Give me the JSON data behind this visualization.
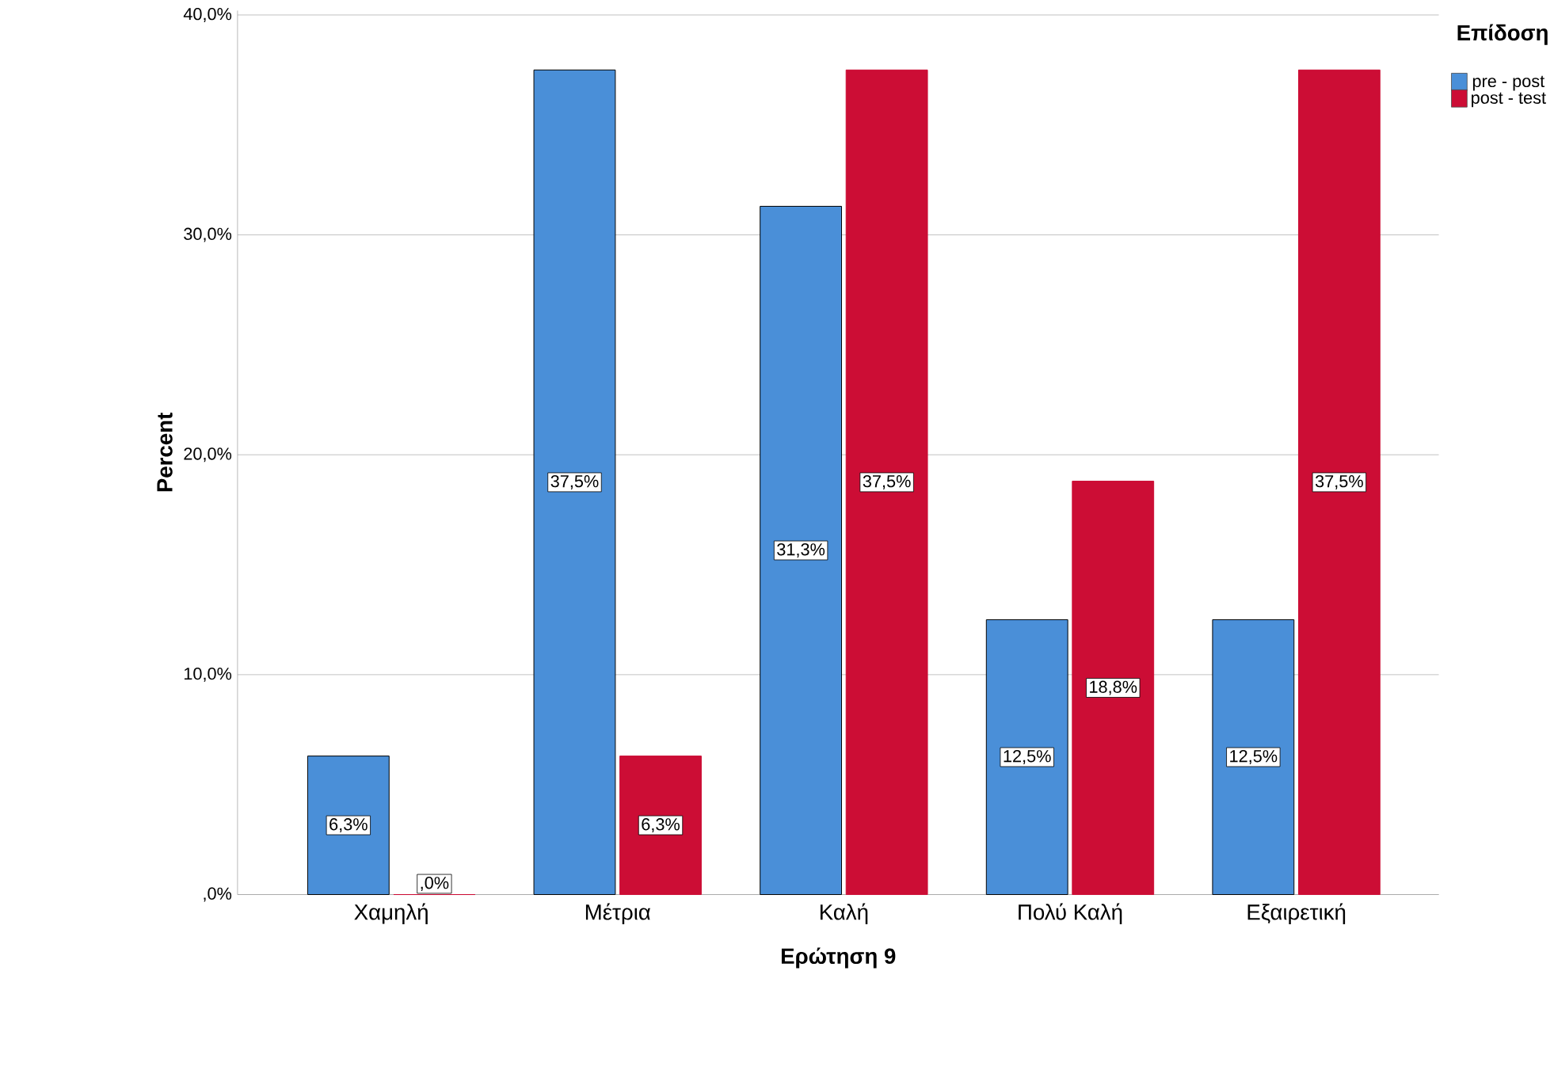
{
  "chart_data": {
    "type": "bar",
    "xlabel": "Ερώτηση 9",
    "ylabel": "Percent",
    "legend_title": "Επίδοση",
    "categories": [
      "Χαμηλή",
      "Μέτρια",
      "Καλή",
      "Πολύ Καλή",
      "Εξαιρετική"
    ],
    "series": [
      {
        "name": "pre - post",
        "color": "#4a8fd8",
        "values": [
          6.3,
          37.5,
          31.3,
          12.5,
          12.5
        ],
        "value_labels": [
          "6,3%",
          "37,5%",
          "31,3%",
          "12,5%",
          "12,5%"
        ]
      },
      {
        "name": "post - test",
        "color": "#cc0d35",
        "values": [
          0,
          6.3,
          37.5,
          18.8,
          37.5
        ],
        "value_labels": [
          ",0%",
          "6,3%",
          "37,5%",
          "18,8%",
          "37,5%"
        ]
      }
    ],
    "ylim": [
      0,
      40.2
    ],
    "yticks": [
      {
        "value": 0,
        "label": ",0%"
      },
      {
        "value": 10,
        "label": "10,0%"
      },
      {
        "value": 20,
        "label": "20,0%"
      },
      {
        "value": 30,
        "label": "30,0%"
      },
      {
        "value": 40,
        "label": "40,0%"
      }
    ],
    "grid": "y",
    "legend": "right"
  }
}
